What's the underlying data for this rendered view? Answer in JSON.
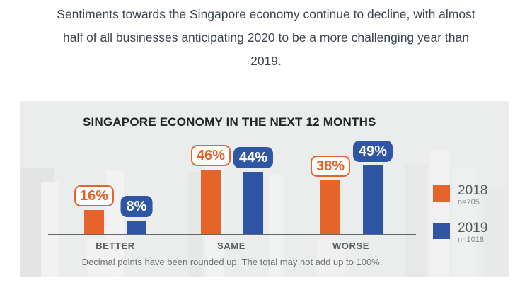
{
  "headline": {
    "full_text": "Sentiments towards the Singapore economy continue to decline, with almost half of all businesses anticipating 2020 to be a more challenging year than 2019.",
    "lines": [
      "Sentiments towards the Singapore economy continue to decline, with almost",
      "half of all businesses anticipating 2020 to be a more challenging year than",
      "2019."
    ]
  },
  "chart": {
    "title": "SINGAPORE ECONOMY IN THE NEXT 12 MONTHS",
    "legend": [
      {
        "year": "2018",
        "n": "n=705",
        "color": "#E6632C"
      },
      {
        "year": "2019",
        "n": "n=1018",
        "color": "#2E56A4"
      }
    ],
    "footnote": "Decimal points have been rounded up. The total may not add up to 100%."
  },
  "chart_data": {
    "type": "bar",
    "title": "SINGAPORE ECONOMY IN THE NEXT 12 MONTHS",
    "categories": [
      "BETTER",
      "SAME",
      "WORSE"
    ],
    "series": [
      {
        "name": "2018",
        "sample_size": "n=705",
        "color": "#E6632C",
        "values": [
          16,
          46,
          38
        ],
        "labels": [
          "16%",
          "46%",
          "38%"
        ]
      },
      {
        "name": "2019",
        "sample_size": "n=1018",
        "color": "#2E56A4",
        "values": [
          8,
          44,
          49
        ],
        "labels": [
          "8%",
          "44%",
          "49%"
        ]
      }
    ],
    "unit": "%",
    "ylim": [
      0,
      55
    ],
    "grid": false,
    "legend_position": "right",
    "note": "Decimal points have been rounded up. The total may not add up to 100%."
  },
  "colors": {
    "accent_orange": "#E6632C",
    "accent_blue": "#2E56A4",
    "panel_background": "#EBECEC",
    "headline_text": "#3C4650",
    "axis_line": "#63676B"
  }
}
